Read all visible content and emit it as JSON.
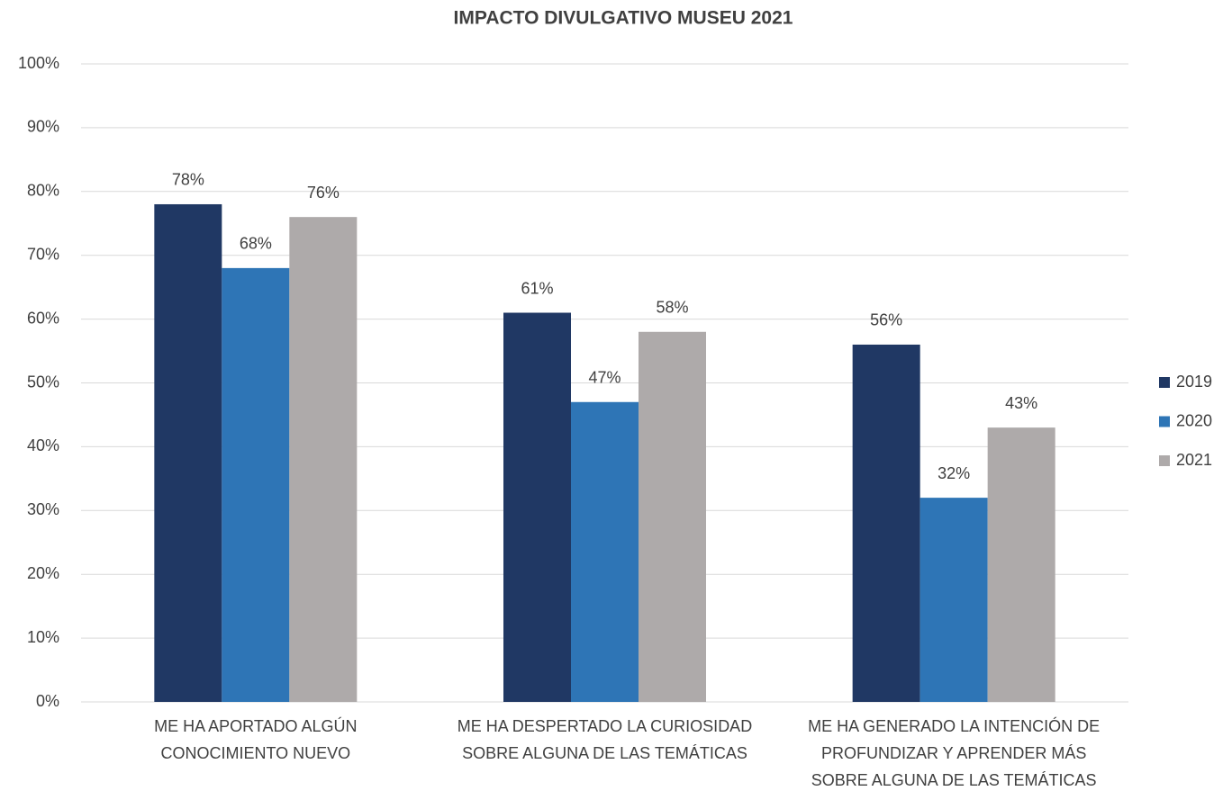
{
  "chart_data": {
    "type": "bar",
    "title": "IMPACTO DIVULGATIVO MUSEU 2021",
    "categories": [
      [
        "ME HA APORTADO ALGÚN",
        "CONOCIMIENTO NUEVO"
      ],
      [
        "ME HA DESPERTADO LA CURIOSIDAD",
        "SOBRE ALGUNA DE LAS TEMÁTICAS"
      ],
      [
        "ME HA GENERADO LA INTENCIÓN DE",
        "PROFUNDIZAR Y APRENDER MÁS",
        "SOBRE ALGUNA DE LAS TEMÁTICAS"
      ]
    ],
    "series": [
      {
        "name": "2019",
        "color": "#203864",
        "values": [
          78,
          61,
          56
        ],
        "value_labels": [
          "78%",
          "61%",
          "56%"
        ]
      },
      {
        "name": "2020",
        "color": "#2e75b6",
        "values": [
          68,
          47,
          32
        ],
        "value_labels": [
          "68%",
          "47%",
          "32%"
        ]
      },
      {
        "name": "2021",
        "color": "#aeaaaa",
        "values": [
          76,
          58,
          43
        ],
        "value_labels": [
          "76%",
          "58%",
          "43%"
        ]
      }
    ],
    "ylim": [
      0,
      100
    ],
    "yticks": [
      {
        "value": 0,
        "label": "0%"
      },
      {
        "value": 10,
        "label": "10%"
      },
      {
        "value": 20,
        "label": "20%"
      },
      {
        "value": 30,
        "label": "30%"
      },
      {
        "value": 40,
        "label": "40%"
      },
      {
        "value": 50,
        "label": "50%"
      },
      {
        "value": 60,
        "label": "60%"
      },
      {
        "value": 70,
        "label": "70%"
      },
      {
        "value": 80,
        "label": "80%"
      },
      {
        "value": 90,
        "label": "90%"
      },
      {
        "value": 100,
        "label": "100%"
      }
    ],
    "grid": true,
    "legend": "right"
  }
}
